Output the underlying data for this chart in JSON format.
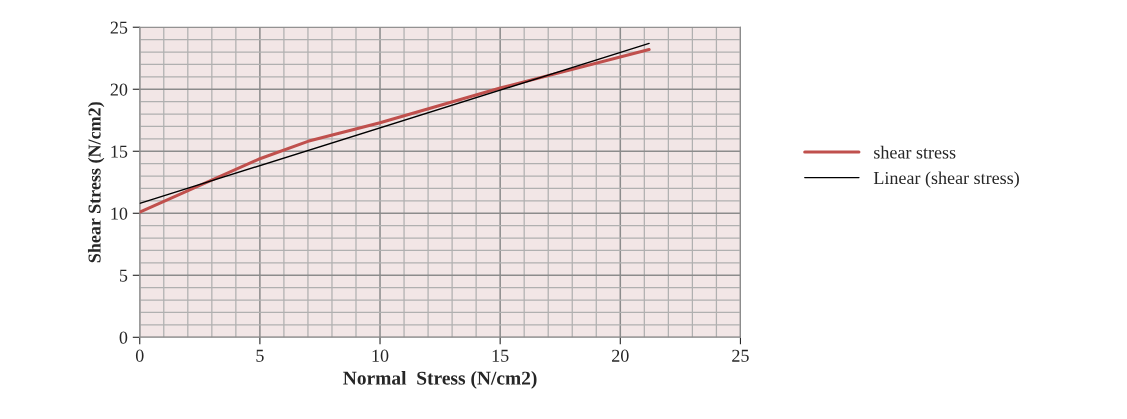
{
  "chart_data": {
    "type": "line",
    "xlabel": "Normal  Stress (N/cm2)",
    "ylabel": "Shear Stress (N/cm2)",
    "xlim": [
      0,
      25
    ],
    "xticks": [
      0,
      5,
      10,
      15,
      20,
      25
    ],
    "ylim": [
      0,
      25
    ],
    "yticks": [
      0,
      5,
      10,
      15,
      20,
      25
    ],
    "grid": true,
    "legend": "right",
    "line_style": "solid",
    "marker": "none",
    "series": [
      {
        "name": "shear stress",
        "color": "#c0504d",
        "x": [
          0,
          5,
          7,
          10,
          15,
          21.2
        ],
        "values": [
          10.1,
          14.4,
          15.8,
          17.3,
          20.1,
          23.2
        ]
      },
      {
        "name": "Linear (shear stress)",
        "color": "#000000",
        "x": [
          0,
          21.2
        ],
        "values": [
          10.8,
          23.7
        ]
      }
    ]
  }
}
